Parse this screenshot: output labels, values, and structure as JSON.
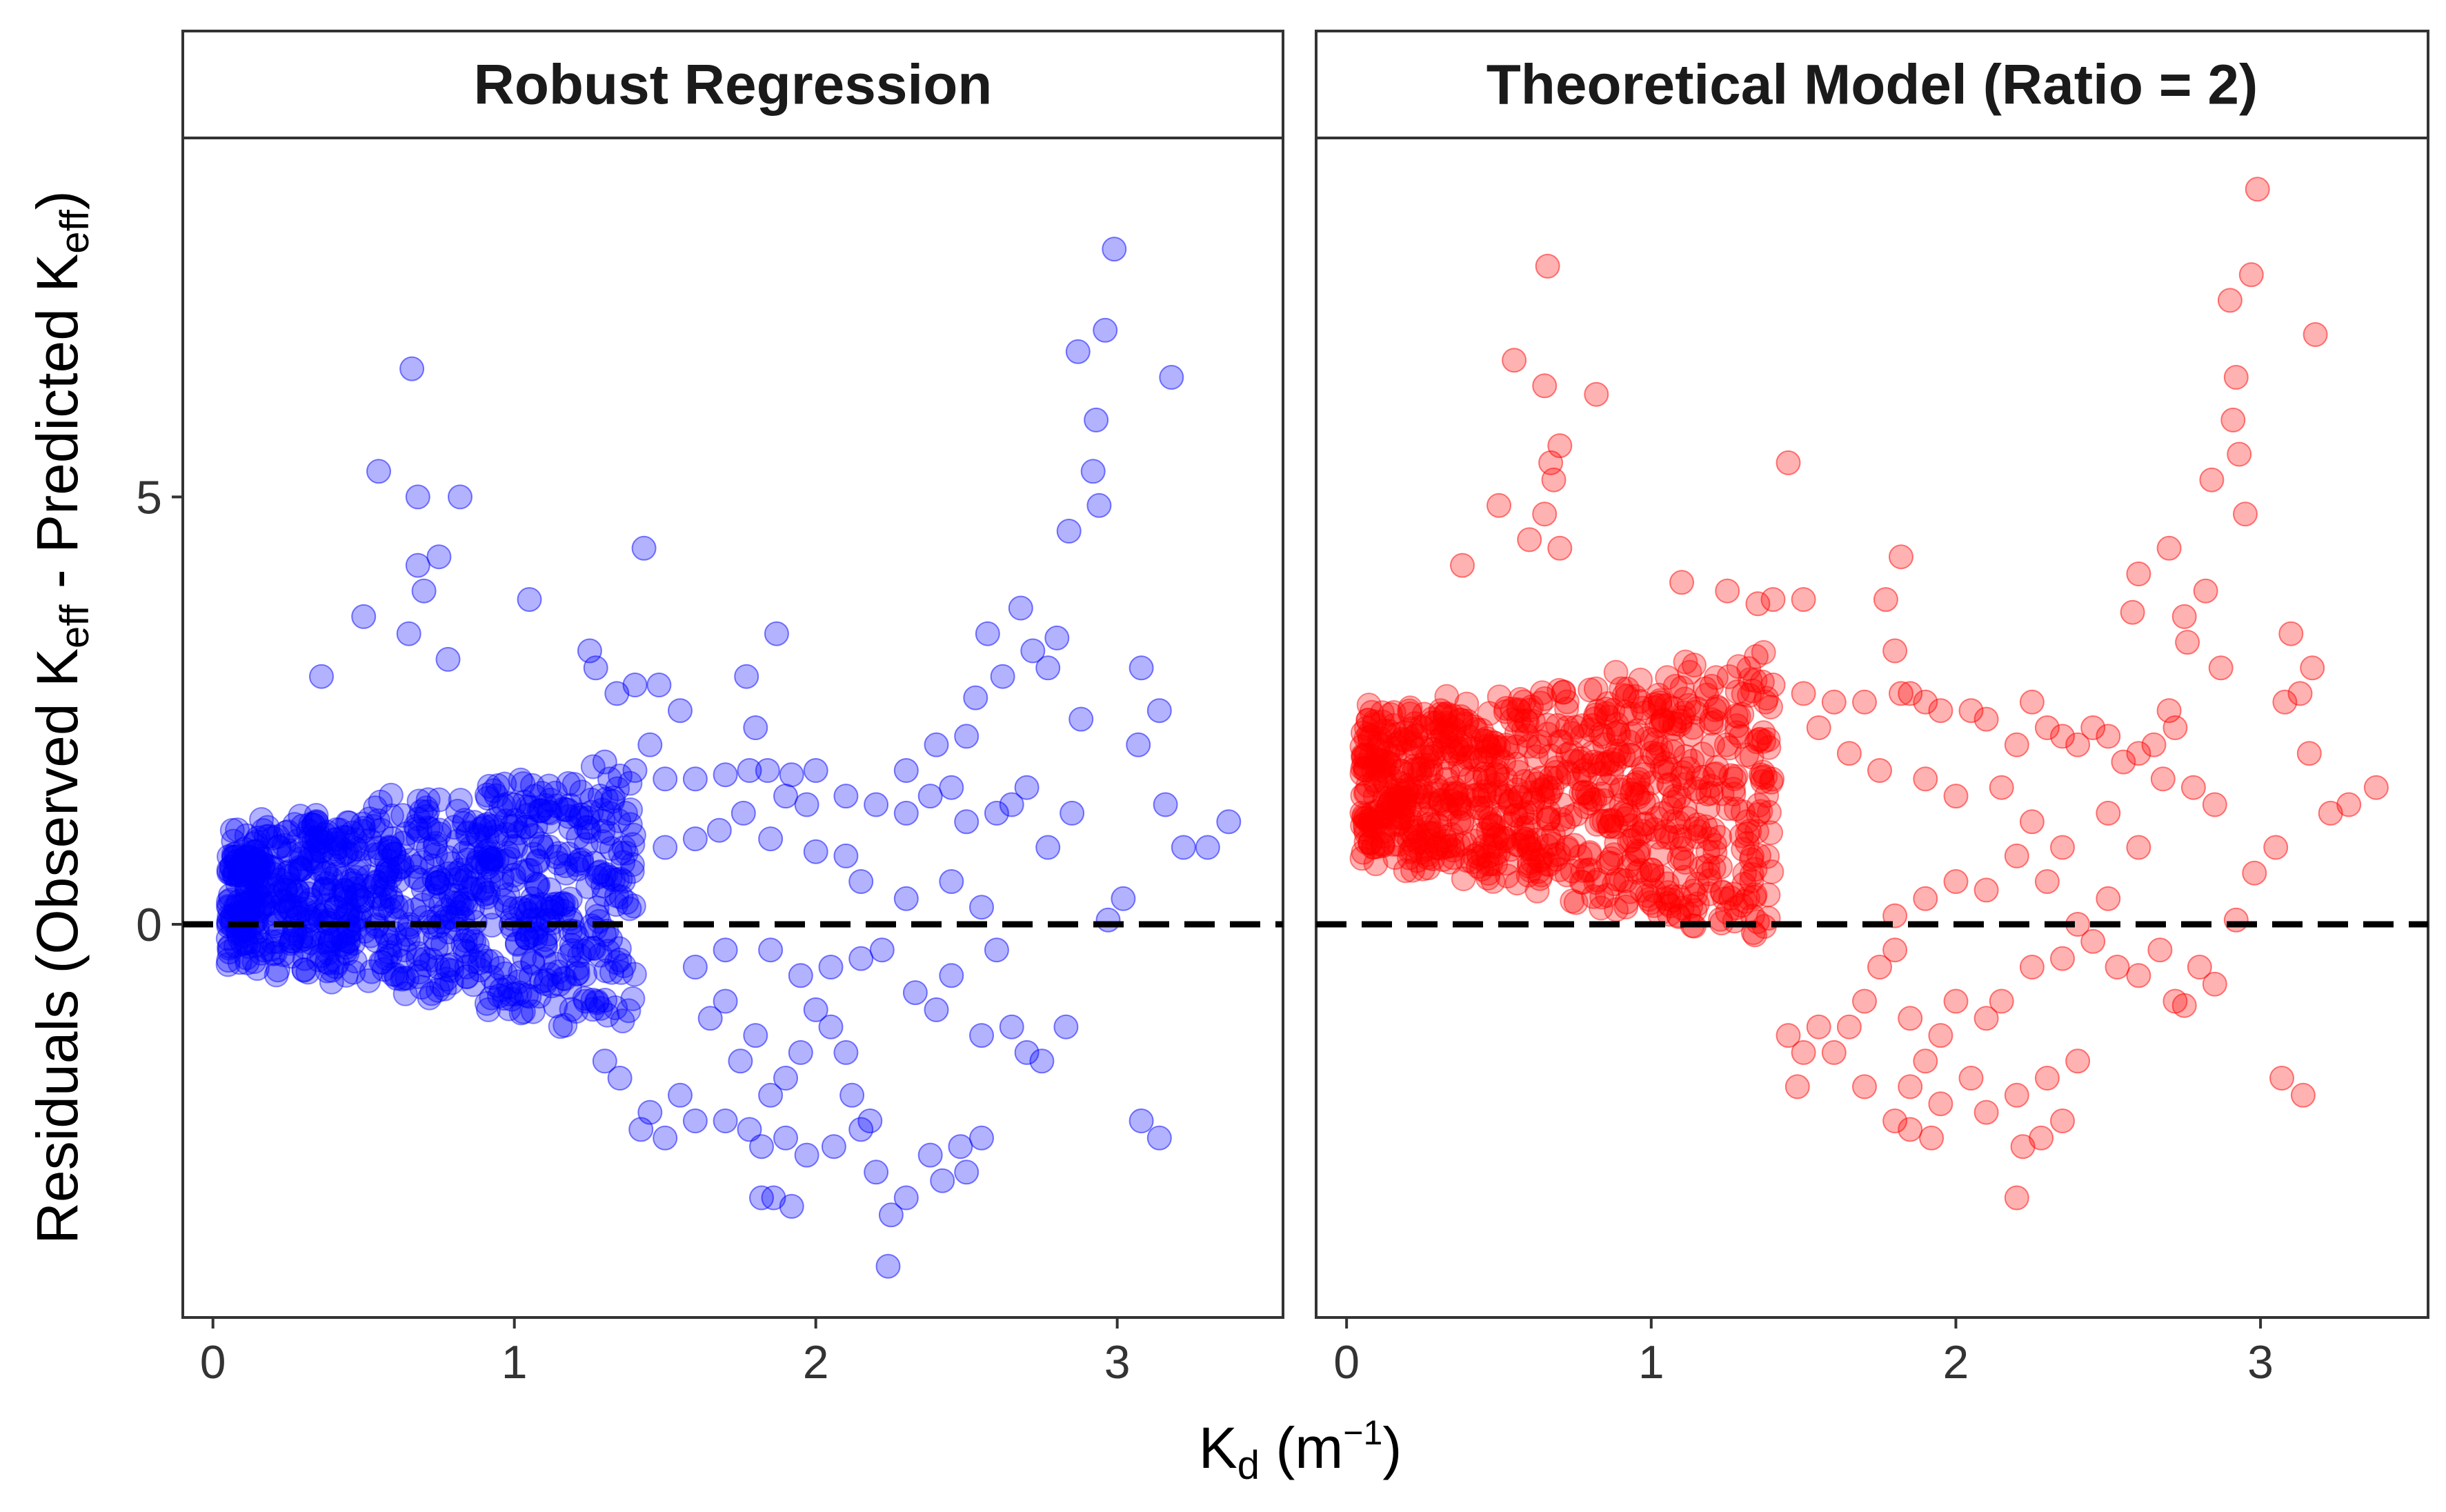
{
  "chart_data": {
    "type": "scatter",
    "layout": "facet-2-panels",
    "xlabel": {
      "base": "K",
      "sub": "d",
      "unit_open": " (m",
      "sup": "−1",
      "unit_close": ")"
    },
    "ylabel": {
      "p1": "Residuals (Observed K",
      "sub1": "eff",
      "p2": " - Predicted K",
      "sub2": "eff",
      "p3": ")"
    },
    "xlim": [
      -0.1,
      3.55
    ],
    "ylim": [
      -4.6,
      9.2
    ],
    "x_ticks": [
      {
        "value": 0,
        "label": "0"
      },
      {
        "value": 1,
        "label": "1"
      },
      {
        "value": 2,
        "label": "2"
      },
      {
        "value": 3,
        "label": "3"
      }
    ],
    "y_ticks": [
      {
        "value": 0,
        "label": "0"
      },
      {
        "value": 5,
        "label": "5"
      }
    ],
    "reference_line": {
      "y": 0,
      "style": "dashed",
      "color": "#000000"
    },
    "panels": [
      {
        "title": "Robust Regression",
        "color": "#0000ff",
        "points": [
          [
            0.66,
            6.5
          ],
          [
            0.55,
            5.3
          ],
          [
            0.68,
            5.0
          ],
          [
            0.82,
            5.0
          ],
          [
            0.75,
            4.3
          ],
          [
            0.68,
            4.2
          ],
          [
            0.7,
            3.9
          ],
          [
            1.43,
            4.4
          ],
          [
            1.05,
            3.8
          ],
          [
            1.25,
            3.2
          ],
          [
            0.5,
            3.6
          ],
          [
            0.65,
            3.4
          ],
          [
            0.78,
            3.1
          ],
          [
            0.36,
            2.9
          ],
          [
            1.27,
            3.0
          ],
          [
            1.34,
            2.7
          ],
          [
            1.4,
            2.8
          ],
          [
            1.48,
            2.8
          ],
          [
            1.55,
            2.5
          ],
          [
            1.45,
            2.1
          ],
          [
            1.3,
            1.9
          ],
          [
            1.4,
            1.8
          ],
          [
            1.5,
            1.7
          ],
          [
            1.6,
            1.7
          ],
          [
            1.7,
            1.75
          ],
          [
            1.78,
            1.8
          ],
          [
            1.84,
            1.8
          ],
          [
            1.92,
            1.75
          ],
          [
            2.0,
            1.8
          ],
          [
            1.8,
            2.3
          ],
          [
            1.77,
            2.9
          ],
          [
            1.87,
            3.4
          ],
          [
            2.1,
            1.5
          ],
          [
            2.2,
            1.4
          ],
          [
            2.3,
            1.8
          ],
          [
            2.4,
            2.1
          ],
          [
            2.5,
            2.2
          ],
          [
            2.53,
            2.65
          ],
          [
            2.62,
            2.9
          ],
          [
            2.57,
            3.4
          ],
          [
            2.68,
            3.7
          ],
          [
            2.72,
            3.2
          ],
          [
            2.8,
            3.35
          ],
          [
            2.77,
            3.0
          ],
          [
            2.85,
            1.3
          ],
          [
            2.88,
            2.4
          ],
          [
            2.87,
            6.7
          ],
          [
            2.96,
            6.95
          ],
          [
            2.99,
            7.9
          ],
          [
            2.93,
            5.9
          ],
          [
            2.92,
            5.3
          ],
          [
            2.94,
            4.9
          ],
          [
            2.84,
            4.6
          ],
          [
            3.18,
            6.4
          ],
          [
            3.08,
            3.0
          ],
          [
            3.14,
            2.5
          ],
          [
            3.07,
            2.1
          ],
          [
            3.16,
            1.4
          ],
          [
            3.22,
            0.9
          ],
          [
            3.3,
            0.9
          ],
          [
            3.37,
            1.2
          ],
          [
            3.02,
            0.3
          ],
          [
            2.97,
            0.05
          ],
          [
            2.77,
            0.9
          ],
          [
            2.7,
            1.6
          ],
          [
            2.65,
            1.4
          ],
          [
            2.6,
            1.3
          ],
          [
            2.5,
            1.2
          ],
          [
            2.45,
            1.6
          ],
          [
            2.38,
            1.5
          ],
          [
            2.3,
            1.3
          ],
          [
            2.0,
            0.85
          ],
          [
            2.1,
            0.8
          ],
          [
            2.15,
            0.5
          ],
          [
            2.3,
            0.3
          ],
          [
            2.45,
            0.5
          ],
          [
            2.55,
            0.2
          ],
          [
            2.33,
            -0.8
          ],
          [
            2.4,
            -1.0
          ],
          [
            2.45,
            -0.6
          ],
          [
            2.55,
            -1.3
          ],
          [
            2.6,
            -0.3
          ],
          [
            2.65,
            -1.2
          ],
          [
            2.7,
            -1.5
          ],
          [
            2.75,
            -1.6
          ],
          [
            2.83,
            -1.2
          ],
          [
            3.08,
            -2.3
          ],
          [
            3.14,
            -2.5
          ],
          [
            2.0,
            -1.0
          ],
          [
            2.05,
            -1.2
          ],
          [
            1.95,
            -1.5
          ],
          [
            1.9,
            -1.8
          ],
          [
            1.85,
            -2.0
          ],
          [
            1.8,
            -1.3
          ],
          [
            1.75,
            -1.6
          ],
          [
            1.7,
            -2.3
          ],
          [
            1.78,
            -2.4
          ],
          [
            1.82,
            -2.6
          ],
          [
            1.9,
            -2.5
          ],
          [
            2.1,
            -1.5
          ],
          [
            2.12,
            -2.0
          ],
          [
            2.18,
            -2.3
          ],
          [
            2.15,
            -2.4
          ],
          [
            2.2,
            -2.9
          ],
          [
            2.25,
            -3.4
          ],
          [
            2.24,
            -4.0
          ],
          [
            2.3,
            -3.2
          ],
          [
            2.38,
            -2.7
          ],
          [
            2.48,
            -2.6
          ],
          [
            2.55,
            -2.5
          ],
          [
            2.42,
            -3.0
          ],
          [
            2.5,
            -2.9
          ],
          [
            1.82,
            -3.2
          ],
          [
            1.86,
            -3.2
          ],
          [
            1.92,
            -3.3
          ],
          [
            1.97,
            -2.7
          ],
          [
            2.06,
            -2.6
          ],
          [
            1.5,
            -2.5
          ],
          [
            1.42,
            -2.4
          ],
          [
            1.45,
            -2.2
          ],
          [
            1.55,
            -2.0
          ],
          [
            1.6,
            -2.3
          ],
          [
            1.35,
            -1.8
          ],
          [
            1.3,
            -1.6
          ],
          [
            1.65,
            -1.1
          ],
          [
            1.7,
            -0.9
          ],
          [
            1.6,
            -0.5
          ],
          [
            1.7,
            -0.3
          ],
          [
            1.85,
            -0.3
          ],
          [
            1.95,
            -0.6
          ],
          [
            2.05,
            -0.5
          ],
          [
            2.15,
            -0.4
          ],
          [
            2.22,
            -0.3
          ],
          [
            1.5,
            0.9
          ],
          [
            1.6,
            1.0
          ],
          [
            1.68,
            1.1
          ],
          [
            1.76,
            1.3
          ],
          [
            1.85,
            1.0
          ],
          [
            1.9,
            1.5
          ],
          [
            1.97,
            1.4
          ]
        ]
      },
      {
        "title": "Theoretical Model (Ratio = 2)",
        "color": "#ff0000",
        "points": [
          [
            2.99,
            8.6
          ],
          [
            2.97,
            7.6
          ],
          [
            2.9,
            7.3
          ],
          [
            0.66,
            7.7
          ],
          [
            0.55,
            6.6
          ],
          [
            0.65,
            6.3
          ],
          [
            0.82,
            6.2
          ],
          [
            3.18,
            6.9
          ],
          [
            2.92,
            6.4
          ],
          [
            2.91,
            5.9
          ],
          [
            2.93,
            5.5
          ],
          [
            2.84,
            5.2
          ],
          [
            2.95,
            4.8
          ],
          [
            0.7,
            5.6
          ],
          [
            0.67,
            5.4
          ],
          [
            0.68,
            5.2
          ],
          [
            0.5,
            4.9
          ],
          [
            0.6,
            4.5
          ],
          [
            0.65,
            4.8
          ],
          [
            0.7,
            4.4
          ],
          [
            0.38,
            4.2
          ],
          [
            1.45,
            5.4
          ],
          [
            1.82,
            4.3
          ],
          [
            1.1,
            4.0
          ],
          [
            1.25,
            3.9
          ],
          [
            1.35,
            3.75
          ],
          [
            1.4,
            3.8
          ],
          [
            1.5,
            3.8
          ],
          [
            1.77,
            3.8
          ],
          [
            1.8,
            3.2
          ],
          [
            1.85,
            2.7
          ],
          [
            2.7,
            4.4
          ],
          [
            2.6,
            4.1
          ],
          [
            2.58,
            3.65
          ],
          [
            2.75,
            3.6
          ],
          [
            2.82,
            3.9
          ],
          [
            2.76,
            3.3
          ],
          [
            2.87,
            3.0
          ],
          [
            2.7,
            2.5
          ],
          [
            2.72,
            2.3
          ],
          [
            2.65,
            2.1
          ],
          [
            2.6,
            2.0
          ],
          [
            2.55,
            1.9
          ],
          [
            2.5,
            2.2
          ],
          [
            2.45,
            2.3
          ],
          [
            2.4,
            2.1
          ],
          [
            2.35,
            2.2
          ],
          [
            2.3,
            2.3
          ],
          [
            2.25,
            2.6
          ],
          [
            2.2,
            2.1
          ],
          [
            2.1,
            2.4
          ],
          [
            2.05,
            2.5
          ],
          [
            1.95,
            2.5
          ],
          [
            1.9,
            2.6
          ],
          [
            1.82,
            2.7
          ],
          [
            1.7,
            2.6
          ],
          [
            1.6,
            2.6
          ],
          [
            1.5,
            2.7
          ],
          [
            1.4,
            2.8
          ],
          [
            1.55,
            2.3
          ],
          [
            1.65,
            2.0
          ],
          [
            1.75,
            1.8
          ],
          [
            1.9,
            1.7
          ],
          [
            2.0,
            1.5
          ],
          [
            2.15,
            1.6
          ],
          [
            2.25,
            1.2
          ],
          [
            2.35,
            0.9
          ],
          [
            2.5,
            1.3
          ],
          [
            2.6,
            0.9
          ],
          [
            2.68,
            1.7
          ],
          [
            2.78,
            1.6
          ],
          [
            2.85,
            1.4
          ],
          [
            3.1,
            3.4
          ],
          [
            3.17,
            3.0
          ],
          [
            3.08,
            2.6
          ],
          [
            3.13,
            2.7
          ],
          [
            3.16,
            2.0
          ],
          [
            3.23,
            1.3
          ],
          [
            3.29,
            1.4
          ],
          [
            3.38,
            1.6
          ],
          [
            3.05,
            0.9
          ],
          [
            2.98,
            0.6
          ],
          [
            2.92,
            0.05
          ],
          [
            2.5,
            0.3
          ],
          [
            2.3,
            0.5
          ],
          [
            2.2,
            0.8
          ],
          [
            2.1,
            0.4
          ],
          [
            2.0,
            0.5
          ],
          [
            1.9,
            0.3
          ],
          [
            1.8,
            0.1
          ],
          [
            2.4,
            0.0
          ],
          [
            2.45,
            -0.2
          ],
          [
            2.6,
            -0.6
          ],
          [
            2.67,
            -0.3
          ],
          [
            2.72,
            -0.9
          ],
          [
            2.8,
            -0.5
          ],
          [
            2.85,
            -0.7
          ],
          [
            2.53,
            -0.5
          ],
          [
            2.35,
            -0.4
          ],
          [
            2.25,
            -0.5
          ],
          [
            2.15,
            -0.9
          ],
          [
            2.1,
            -1.1
          ],
          [
            2.0,
            -0.9
          ],
          [
            1.95,
            -1.3
          ],
          [
            1.85,
            -1.1
          ],
          [
            1.8,
            -0.3
          ],
          [
            1.75,
            -0.5
          ],
          [
            1.7,
            -0.9
          ],
          [
            1.65,
            -1.2
          ],
          [
            1.55,
            -1.2
          ],
          [
            1.5,
            -1.5
          ],
          [
            1.45,
            -1.3
          ],
          [
            1.9,
            -1.6
          ],
          [
            1.85,
            -1.9
          ],
          [
            2.05,
            -1.8
          ],
          [
            1.95,
            -2.1
          ],
          [
            2.1,
            -2.2
          ],
          [
            1.8,
            -2.3
          ],
          [
            1.85,
            -2.4
          ],
          [
            1.92,
            -2.5
          ],
          [
            2.2,
            -2.0
          ],
          [
            2.28,
            -2.5
          ],
          [
            2.35,
            -2.3
          ],
          [
            2.3,
            -1.8
          ],
          [
            2.4,
            -1.6
          ],
          [
            2.22,
            -2.6
          ],
          [
            2.2,
            -3.2
          ],
          [
            3.07,
            -1.8
          ],
          [
            3.14,
            -2.0
          ],
          [
            2.75,
            -0.95
          ],
          [
            1.6,
            -1.5
          ],
          [
            1.7,
            -1.9
          ],
          [
            1.48,
            -1.9
          ]
        ]
      }
    ]
  }
}
